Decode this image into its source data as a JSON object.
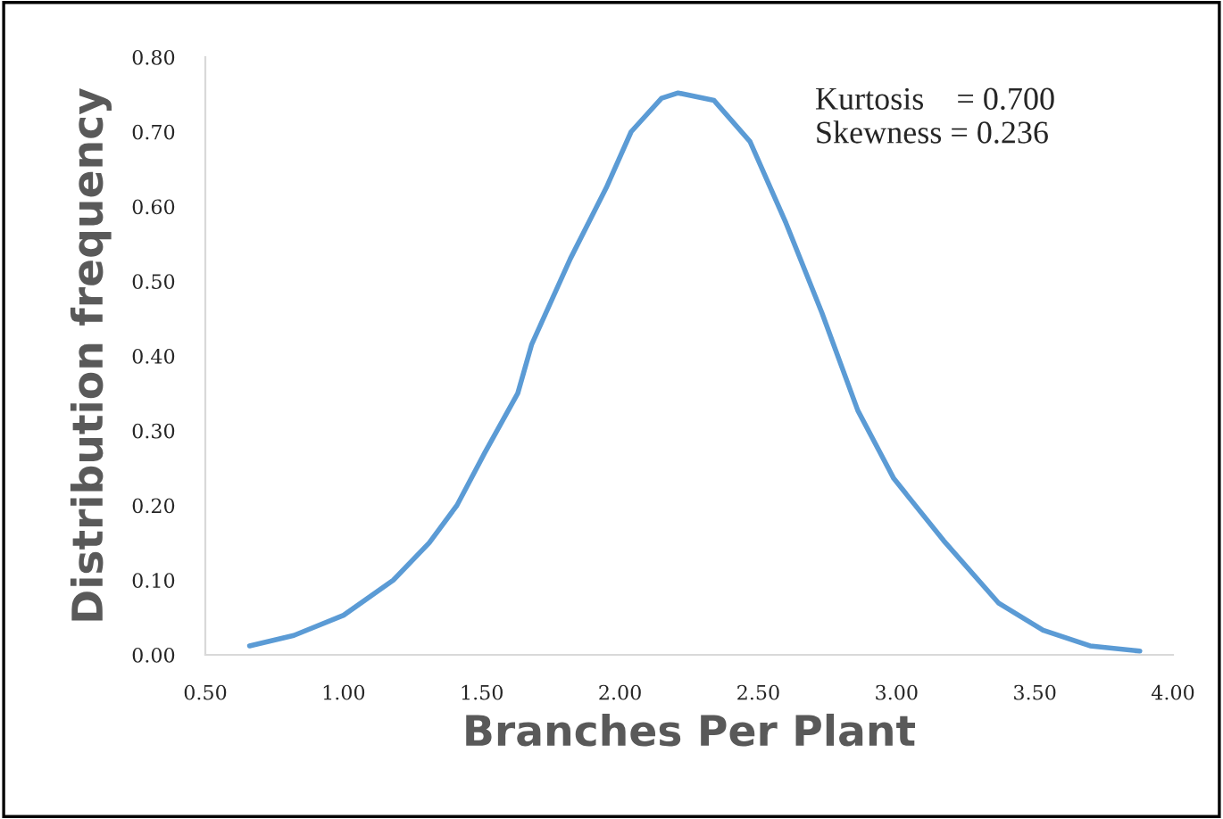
{
  "chart_data": {
    "type": "line",
    "xlabel": "Branches Per Plant",
    "ylabel": "Distribution frequency",
    "annotations": [
      "Kurtosis    = 0.700\nSkewness = 0.236"
    ],
    "x": [
      0.66,
      0.82,
      1.0,
      1.18,
      1.31,
      1.41,
      1.51,
      1.63,
      1.68,
      1.82,
      1.95,
      2.04,
      2.15,
      2.21,
      2.34,
      2.47,
      2.6,
      2.73,
      2.86,
      2.99,
      3.17,
      3.37,
      3.53,
      3.7,
      3.88
    ],
    "series": [
      {
        "color": "#5b9bd5",
        "values": [
          0.012,
          0.026,
          0.053,
          0.1,
          0.15,
          0.2,
          0.27,
          0.35,
          0.415,
          0.53,
          0.625,
          0.7,
          0.745,
          0.752,
          0.742,
          0.687,
          0.578,
          0.458,
          0.327,
          0.236,
          0.153,
          0.069,
          0.033,
          0.012,
          0.005
        ]
      }
    ],
    "xlim": [
      0.5,
      4.0
    ],
    "ylim": [
      0.0,
      0.8
    ],
    "xticks": [
      {
        "value": 0.5,
        "label": "0.50"
      },
      {
        "value": 1.0,
        "label": "1.00"
      },
      {
        "value": 1.5,
        "label": "1.50"
      },
      {
        "value": 2.0,
        "label": "2.00"
      },
      {
        "value": 2.5,
        "label": "2.50"
      },
      {
        "value": 3.0,
        "label": "3.00"
      },
      {
        "value": 3.5,
        "label": "3.50"
      },
      {
        "value": 4.0,
        "label": "4.00"
      }
    ],
    "yticks": [
      {
        "value": 0.0,
        "label": "0.00"
      },
      {
        "value": 0.1,
        "label": "0.10"
      },
      {
        "value": 0.2,
        "label": "0.20"
      },
      {
        "value": 0.3,
        "label": "0.30"
      },
      {
        "value": 0.4,
        "label": "0.40"
      },
      {
        "value": 0.5,
        "label": "0.50"
      },
      {
        "value": 0.6,
        "label": "0.60"
      },
      {
        "value": 0.7,
        "label": "0.70"
      },
      {
        "value": 0.8,
        "label": "0.80"
      }
    ],
    "grid": false,
    "marker": "none",
    "line_style": "solid"
  }
}
